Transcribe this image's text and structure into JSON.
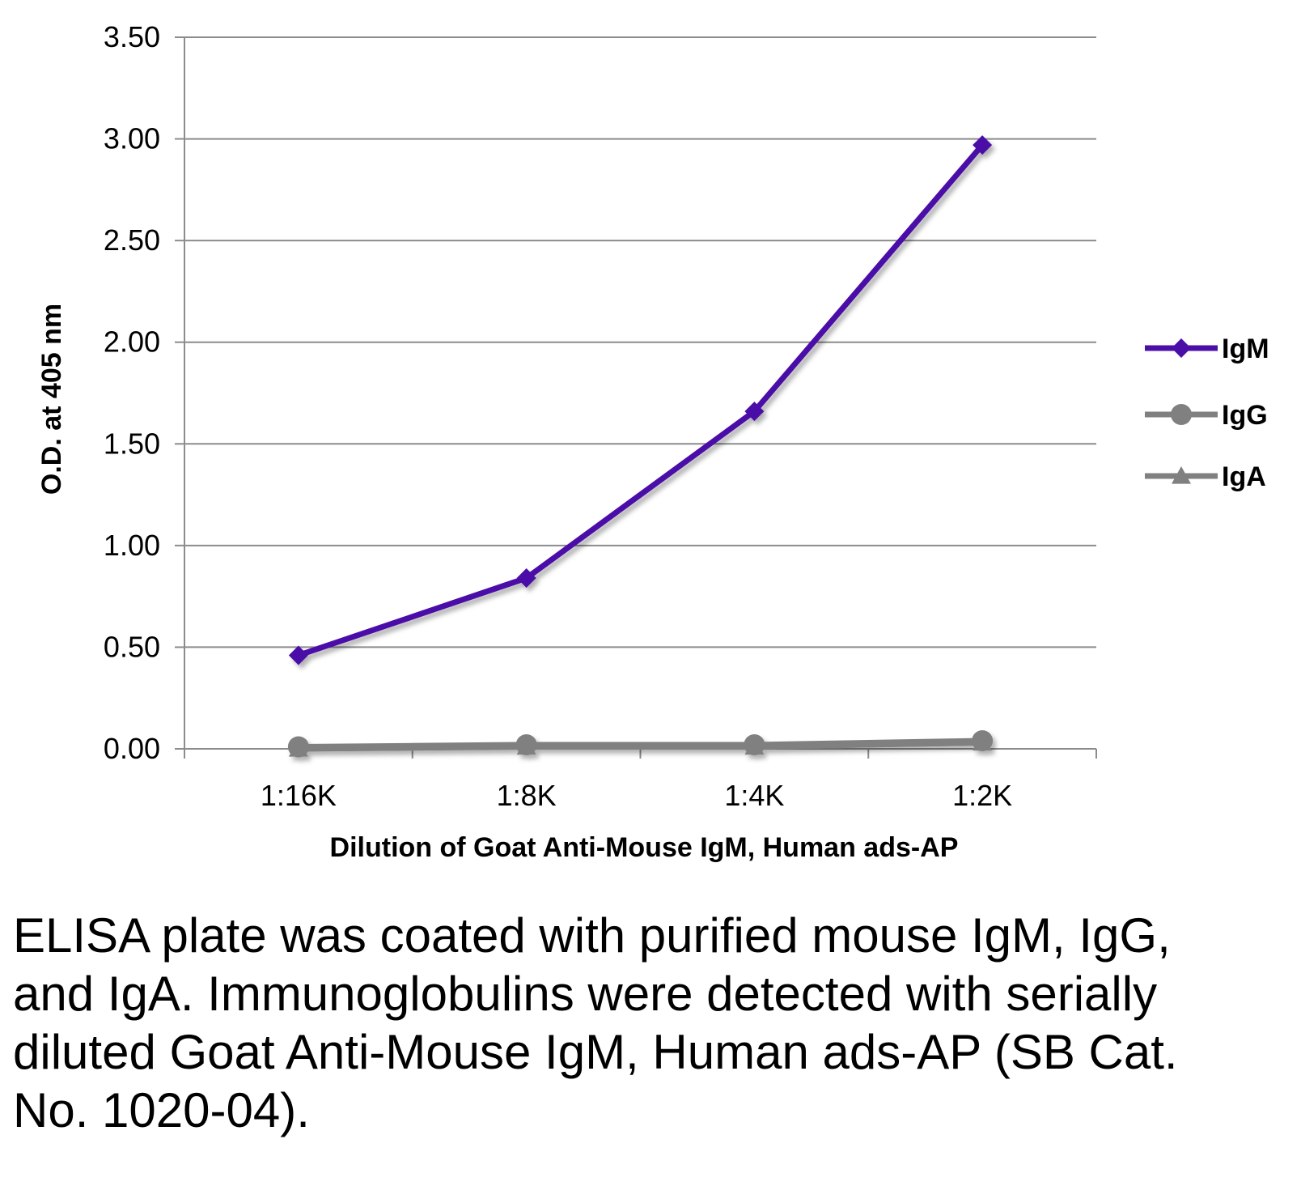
{
  "chart_data": {
    "type": "line",
    "categories": [
      "1:16K",
      "1:8K",
      "1:4K",
      "1:2K"
    ],
    "series": [
      {
        "name": "IgM",
        "values": [
          0.46,
          0.84,
          1.66,
          2.97
        ],
        "color": "#4b0fa8",
        "marker": "diamond"
      },
      {
        "name": "IgG",
        "values": [
          0.01,
          0.02,
          0.02,
          0.04
        ],
        "color": "#808080",
        "marker": "circle"
      },
      {
        "name": "IgA",
        "values": [
          0.0,
          0.01,
          0.01,
          0.03
        ],
        "color": "#808080",
        "marker": "triangle"
      }
    ],
    "yticks": [
      "0.00",
      "0.50",
      "1.00",
      "1.50",
      "2.00",
      "2.50",
      "3.00",
      "3.50"
    ],
    "ylim": [
      0,
      3.5
    ],
    "ylabel": "O.D. at 405 nm",
    "xlabel": "Dilution of Goat Anti-Mouse IgM, Human ads-AP",
    "grid": true,
    "legend_position": "right"
  },
  "caption": "ELISA plate was coated with purified mouse IgM, IgG, and IgA.  Immunoglobulins were detected with serially diluted Goat Anti-Mouse IgM, Human ads-AP (SB Cat. No. 1020-04)."
}
